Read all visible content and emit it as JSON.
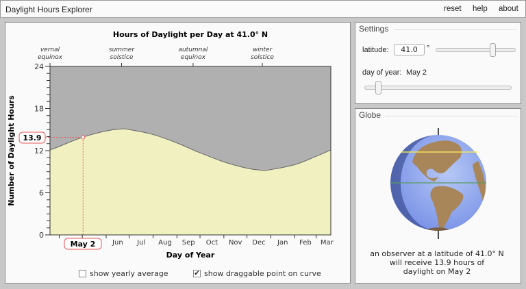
{
  "app": {
    "title": "Daylight Hours Explorer",
    "menu": [
      "reset",
      "help",
      "about"
    ]
  },
  "chart_data": {
    "type": "area",
    "title": "Hours of Daylight per Day at 41.0° N",
    "xlabel": "Day of Year",
    "ylabel": "Number of Daylight Hours",
    "ylim": [
      0,
      24
    ],
    "yticks": [
      "0",
      "6",
      "12",
      "18",
      "24"
    ],
    "month_labels": [
      "Jun",
      "Jul",
      "Aug",
      "Sep",
      "Oct",
      "Nov",
      "Dec",
      "Jan",
      "Feb",
      "Mar"
    ],
    "top_markers": [
      {
        "line1": "vernal",
        "line2": "equinox",
        "date": "Mar 20"
      },
      {
        "line1": "summer",
        "line2": "solstice",
        "date": "Jun 21"
      },
      {
        "line1": "autumnal",
        "line2": "equinox",
        "date": "Sep 22"
      },
      {
        "line1": "winter",
        "line2": "solstice",
        "date": "Dec 21"
      }
    ],
    "points": [
      {
        "date": "Mar 20",
        "hours": 12.1
      },
      {
        "date": "Apr 1",
        "hours": 12.6
      },
      {
        "date": "May 1",
        "hours": 13.9
      },
      {
        "date": "Jun 1",
        "hours": 14.8
      },
      {
        "date": "Jun 21",
        "hours": 15.1
      },
      {
        "date": "Jul 1",
        "hours": 15.0
      },
      {
        "date": "Aug 1",
        "hours": 14.3
      },
      {
        "date": "Sep 1",
        "hours": 13.1
      },
      {
        "date": "Sep 22",
        "hours": 12.1
      },
      {
        "date": "Oct 1",
        "hours": 11.7
      },
      {
        "date": "Nov 1",
        "hours": 10.4
      },
      {
        "date": "Dec 1",
        "hours": 9.5
      },
      {
        "date": "Dec 21",
        "hours": 9.2
      },
      {
        "date": "Jan 1",
        "hours": 9.3
      },
      {
        "date": "Feb 1",
        "hours": 10.0
      },
      {
        "date": "Mar 1",
        "hours": 11.2
      },
      {
        "date": "Mar 20",
        "hours": 12.1
      }
    ],
    "marker": {
      "date": "May 2",
      "hours": "13.9"
    },
    "colors": {
      "day": "#f0f0c0",
      "night": "#b0b0b0",
      "marker": "#ee5555"
    }
  },
  "options": {
    "yearly_average": {
      "label": "show yearly average",
      "checked": false
    },
    "draggable_point": {
      "label": "show draggable point on curve",
      "checked": true
    }
  },
  "settings": {
    "legend": "Settings",
    "latitude_label": "latitude:",
    "latitude_value": "41.0",
    "degree": "°",
    "latitude_slider": 0.73,
    "day_label": "day of year:",
    "day_value": "May 2",
    "day_slider": 0.08
  },
  "globe": {
    "legend": "Globe",
    "info1": "an observer at a latitude of 41.0° N",
    "info2": "will receive 13.9 hours of",
    "info3": "daylight on May 2"
  }
}
